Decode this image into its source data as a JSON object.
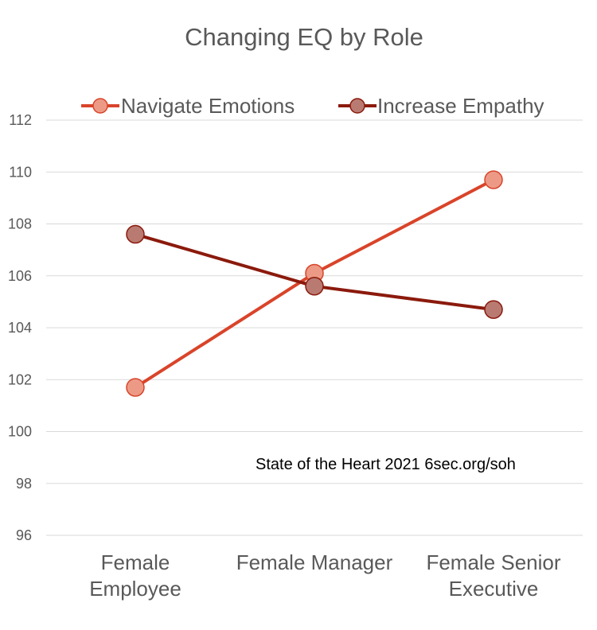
{
  "chart_data": {
    "type": "line",
    "title": "Changing EQ by Role",
    "categories": [
      [
        "Female",
        "Employee"
      ],
      [
        "Female Manager"
      ],
      [
        "Female Senior",
        "Executive"
      ]
    ],
    "series": [
      {
        "name": "Navigate Emotions",
        "color": "#d9442a",
        "marker_fill": "#ec9a86",
        "values": [
          101.7,
          106.1,
          109.7
        ]
      },
      {
        "name": "Increase Empathy",
        "color": "#8b1a0c",
        "marker_fill": "#b97a72",
        "values": [
          107.6,
          105.6,
          104.7
        ]
      }
    ],
    "yticks": [
      "96",
      "98",
      "100",
      "102",
      "104",
      "106",
      "108",
      "110",
      "112"
    ],
    "ylim": [
      96,
      112
    ],
    "grid": true,
    "legend": "top",
    "annotation": "State of the Heart 2021 6sec.org/soh",
    "xlabel": "",
    "ylabel": ""
  }
}
